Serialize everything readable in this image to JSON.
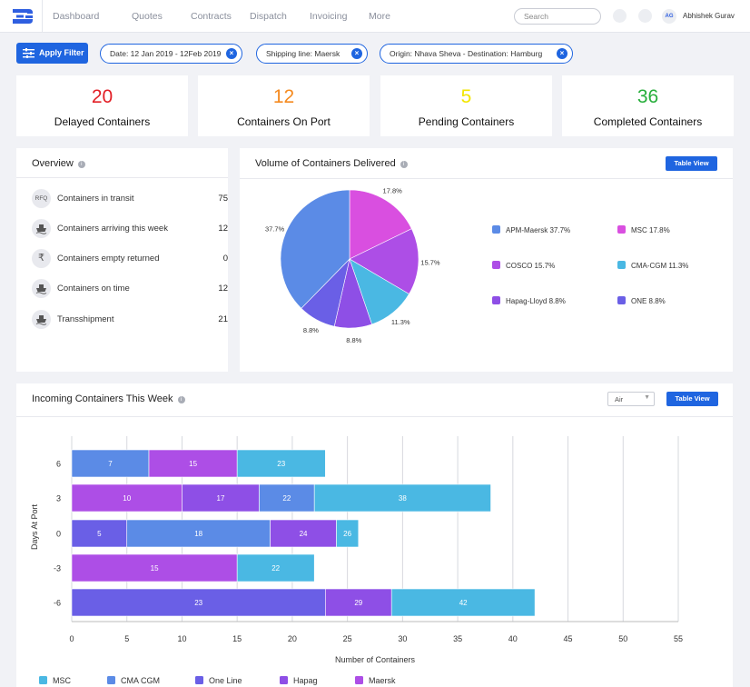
{
  "nav": {
    "items": [
      "Dashboard",
      "Quotes",
      "Contracts",
      "Dispatch",
      "Invoicing",
      "More"
    ],
    "search_placeholder": "Search",
    "avatar_initials": "AG",
    "username": "Abhishek Gurav"
  },
  "filters": {
    "apply_label": "Apply Filter",
    "chips": [
      "Date: 12 Jan 2019 - 12Feb 2019",
      "Shipping line: Maersk",
      "Origin: Nhava Sheva - Destination: Hamburg"
    ]
  },
  "stats": [
    {
      "value": "20",
      "label": "Delayed Containers",
      "color": "#e21f26"
    },
    {
      "value": "12",
      "label": "Containers On Port",
      "color": "#f58a1f"
    },
    {
      "value": "5",
      "label": "Pending Containers",
      "color": "#f2e600"
    },
    {
      "value": "36",
      "label": "Completed Containers",
      "color": "#27ae3b"
    }
  ],
  "overview": {
    "title": "Overview",
    "rows": [
      {
        "icon": "rfq-icon",
        "icon_text": "RFQ",
        "label": "Containers in transit",
        "value": "75"
      },
      {
        "icon": "ship-icon",
        "icon_text": "",
        "label": "Containers arriving this week",
        "value": "12"
      },
      {
        "icon": "rupee-icon",
        "icon_text": "₹",
        "label": "Containers empty returned",
        "value": "0"
      },
      {
        "icon": "ship-icon",
        "icon_text": "",
        "label": "Containers on time",
        "value": "12"
      },
      {
        "icon": "ship-icon",
        "icon_text": "",
        "label": "Transshipment",
        "value": "21"
      }
    ]
  },
  "volume": {
    "title": "Volume of Containers Delivered",
    "table_view_label": "Table View"
  },
  "incoming": {
    "title": "Incoming Containers This Week",
    "select_value": "Air",
    "table_view_label": "Table View"
  },
  "chart_data": [
    {
      "type": "pie",
      "slices": [
        {
          "label": "MSC",
          "value": 17.8,
          "display": "17.8%",
          "color": "#d94fe0"
        },
        {
          "label": "COSCO",
          "value": 15.7,
          "display": "15.7%",
          "color": "#ad4ee6"
        },
        {
          "label": "CMA-CGM",
          "value": 11.3,
          "display": "11.3%",
          "color": "#4ab8e3"
        },
        {
          "label": "Hapag-Lloyd",
          "value": 8.8,
          "display": "8.8%",
          "color": "#8e4fe6"
        },
        {
          "label": "ONE",
          "value": 8.8,
          "display": "8.8%",
          "color": "#6a5fe6"
        },
        {
          "label": "APM-Maersk",
          "value": 37.7,
          "display": "37.7%",
          "color": "#5b8be6"
        }
      ],
      "legend": [
        {
          "text": "APM-Maersk 37.7%",
          "color": "#5b8be6"
        },
        {
          "text": "MSC 17.8%",
          "color": "#d94fe0"
        },
        {
          "text": "COSCO 15.7%",
          "color": "#ad4ee6"
        },
        {
          "text": "CMA-CGM 11.3%",
          "color": "#4ab8e3"
        },
        {
          "text": "Hapag-Lloyd 8.8%",
          "color": "#8e4fe6"
        },
        {
          "text": "ONE 8.8%",
          "color": "#6a5fe6"
        }
      ]
    },
    {
      "type": "bar",
      "orientation": "horizontal",
      "stacked": true,
      "categories": [
        "6",
        "3",
        "0",
        "-3",
        "-6"
      ],
      "xlabel": "Number of Containers",
      "ylabel": "Days At Port",
      "xlim": [
        0,
        55
      ],
      "xticks": [
        0,
        5,
        10,
        15,
        20,
        25,
        30,
        35,
        40,
        45,
        50,
        55
      ],
      "grid": true,
      "legend_position": "bottom",
      "rows": [
        [
          {
            "series": "CMA CGM",
            "value": 7
          },
          {
            "series": "Maersk",
            "value": 15
          },
          {
            "series": "MSC",
            "value": 23
          }
        ],
        [
          {
            "series": "Maersk",
            "value": 10
          },
          {
            "series": "Hapag",
            "value": 17
          },
          {
            "series": "CMA CGM",
            "value": 22
          },
          {
            "series": "MSC",
            "value": 38
          }
        ],
        [
          {
            "series": "One Line",
            "value": 5
          },
          {
            "series": "CMA CGM",
            "value": 18
          },
          {
            "series": "Hapag",
            "value": 24
          },
          {
            "series": "MSC",
            "value": 26
          }
        ],
        [
          {
            "series": "Maersk",
            "value": 15
          },
          {
            "series": "MSC",
            "value": 22
          }
        ],
        [
          {
            "series": "One Line",
            "value": 23
          },
          {
            "series": "Hapag",
            "value": 29
          },
          {
            "series": "MSC",
            "value": 42
          }
        ]
      ],
      "series": [
        {
          "name": "MSC",
          "color": "#4ab8e3"
        },
        {
          "name": "CMA CGM",
          "color": "#5b8be6"
        },
        {
          "name": "One Line",
          "color": "#6a5fe6"
        },
        {
          "name": "Hapag",
          "color": "#8e4fe6"
        },
        {
          "name": "Maersk",
          "color": "#ad4ee6"
        }
      ]
    }
  ]
}
